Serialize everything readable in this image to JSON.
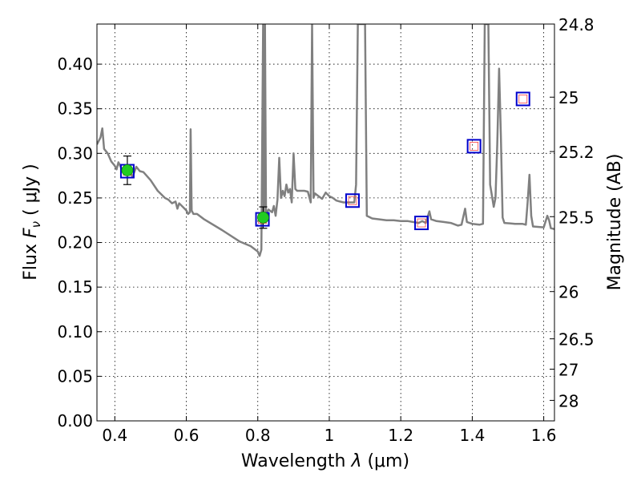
{
  "chart_data": {
    "type": "line",
    "xlabel": "Wavelength",
    "xlabel_symbol": "λ",
    "xlabel_unit": "(μm)",
    "ylabel": "Flux",
    "ylabel_symbol": "F",
    "ylabel_sub": "ν",
    "ylabel_unit": "( μJy )",
    "ylabel_right": "Magnitude (AB)",
    "xlim": [
      0.35,
      1.63
    ],
    "ylim": [
      0.0,
      0.445
    ],
    "grid": true,
    "x_ticks": [
      0.4,
      0.6,
      0.8,
      1.0,
      1.2,
      1.4,
      1.6
    ],
    "x_tick_labels": [
      "0.4",
      "0.6",
      "0.8",
      "1",
      "1.2",
      "1.4",
      "1.6"
    ],
    "y_ticks": [
      0.0,
      0.05,
      0.1,
      0.15,
      0.2,
      0.25,
      0.3,
      0.35,
      0.4
    ],
    "y_tick_labels": [
      "0.00",
      "0.05",
      "0.10",
      "0.15",
      "0.20",
      "0.25",
      "0.30",
      "0.35",
      "0.40"
    ],
    "right_ticks": [
      {
        "label": "24.8",
        "flux": 0.445
      },
      {
        "label": "25",
        "flux": 0.363
      },
      {
        "label": "25.2",
        "flux": 0.302
      },
      {
        "label": "25.5",
        "flux": 0.229
      },
      {
        "label": "26",
        "flux": 0.145
      },
      {
        "label": "26.5",
        "flux": 0.092
      },
      {
        "label": "27",
        "flux": 0.058
      },
      {
        "label": "28",
        "flux": 0.023
      }
    ],
    "colors": {
      "model": "#808080",
      "obs_fill": "#22cc22",
      "obs_edge": "#118811",
      "box": "#0000cc",
      "box_inner": "#ff4444",
      "errorbar": "#000000"
    },
    "series": [
      {
        "kind": "model-spectrum",
        "points": [
          [
            0.35,
            0.31
          ],
          [
            0.36,
            0.318
          ],
          [
            0.365,
            0.328
          ],
          [
            0.37,
            0.305
          ],
          [
            0.38,
            0.3
          ],
          [
            0.39,
            0.291
          ],
          [
            0.4,
            0.286
          ],
          [
            0.405,
            0.282
          ],
          [
            0.41,
            0.29
          ],
          [
            0.42,
            0.282
          ],
          [
            0.43,
            0.276
          ],
          [
            0.44,
            0.279
          ],
          [
            0.45,
            0.274
          ],
          [
            0.46,
            0.285
          ],
          [
            0.47,
            0.28
          ],
          [
            0.48,
            0.279
          ],
          [
            0.5,
            0.27
          ],
          [
            0.52,
            0.258
          ],
          [
            0.54,
            0.25
          ],
          [
            0.55,
            0.248
          ],
          [
            0.56,
            0.244
          ],
          [
            0.57,
            0.246
          ],
          [
            0.575,
            0.238
          ],
          [
            0.58,
            0.244
          ],
          [
            0.59,
            0.24
          ],
          [
            0.6,
            0.236
          ],
          [
            0.605,
            0.232
          ],
          [
            0.61,
            0.234
          ],
          [
            0.612,
            0.327
          ],
          [
            0.615,
            0.236
          ],
          [
            0.62,
            0.232
          ],
          [
            0.63,
            0.232
          ],
          [
            0.65,
            0.226
          ],
          [
            0.7,
            0.214
          ],
          [
            0.75,
            0.201
          ],
          [
            0.78,
            0.196
          ],
          [
            0.8,
            0.19
          ],
          [
            0.805,
            0.185
          ],
          [
            0.81,
            0.192
          ],
          [
            0.815,
            0.445
          ],
          [
            0.817,
            0.225
          ],
          [
            0.82,
            0.445
          ],
          [
            0.823,
            0.232
          ],
          [
            0.83,
            0.237
          ],
          [
            0.84,
            0.234
          ],
          [
            0.845,
            0.241
          ],
          [
            0.85,
            0.23
          ],
          [
            0.855,
            0.248
          ],
          [
            0.86,
            0.295
          ],
          [
            0.865,
            0.25
          ],
          [
            0.87,
            0.258
          ],
          [
            0.875,
            0.252
          ],
          [
            0.88,
            0.265
          ],
          [
            0.885,
            0.256
          ],
          [
            0.89,
            0.26
          ],
          [
            0.895,
            0.245
          ],
          [
            0.9,
            0.3
          ],
          [
            0.905,
            0.26
          ],
          [
            0.91,
            0.258
          ],
          [
            0.93,
            0.258
          ],
          [
            0.94,
            0.257
          ],
          [
            0.948,
            0.245
          ],
          [
            0.952,
            0.445
          ],
          [
            0.956,
            0.25
          ],
          [
            0.96,
            0.255
          ],
          [
            0.97,
            0.252
          ],
          [
            0.98,
            0.249
          ],
          [
            0.99,
            0.256
          ],
          [
            1.0,
            0.252
          ],
          [
            1.01,
            0.25
          ],
          [
            1.02,
            0.247
          ],
          [
            1.03,
            0.246
          ],
          [
            1.04,
            0.245
          ],
          [
            1.05,
            0.245
          ],
          [
            1.06,
            0.245
          ],
          [
            1.07,
            0.245
          ],
          [
            1.075,
            0.265
          ],
          [
            1.08,
            0.445
          ],
          [
            1.1,
            0.445
          ],
          [
            1.105,
            0.23
          ],
          [
            1.11,
            0.229
          ],
          [
            1.12,
            0.227
          ],
          [
            1.14,
            0.226
          ],
          [
            1.16,
            0.225
          ],
          [
            1.18,
            0.225
          ],
          [
            1.2,
            0.224
          ],
          [
            1.22,
            0.224
          ],
          [
            1.25,
            0.222
          ],
          [
            1.26,
            0.224
          ],
          [
            1.27,
            0.222
          ],
          [
            1.28,
            0.235
          ],
          [
            1.285,
            0.226
          ],
          [
            1.3,
            0.224
          ],
          [
            1.32,
            0.223
          ],
          [
            1.34,
            0.222
          ],
          [
            1.36,
            0.219
          ],
          [
            1.37,
            0.22
          ],
          [
            1.38,
            0.238
          ],
          [
            1.385,
            0.223
          ],
          [
            1.4,
            0.221
          ],
          [
            1.42,
            0.22
          ],
          [
            1.43,
            0.221
          ],
          [
            1.435,
            0.445
          ],
          [
            1.445,
            0.445
          ],
          [
            1.45,
            0.265
          ],
          [
            1.46,
            0.24
          ],
          [
            1.465,
            0.25
          ],
          [
            1.47,
            0.31
          ],
          [
            1.475,
            0.395
          ],
          [
            1.48,
            0.32
          ],
          [
            1.485,
            0.228
          ],
          [
            1.49,
            0.222
          ],
          [
            1.52,
            0.221
          ],
          [
            1.54,
            0.221
          ],
          [
            1.55,
            0.22
          ],
          [
            1.555,
            0.245
          ],
          [
            1.56,
            0.276
          ],
          [
            1.565,
            0.23
          ],
          [
            1.57,
            0.218
          ],
          [
            1.6,
            0.217
          ],
          [
            1.61,
            0.23
          ],
          [
            1.615,
            0.225
          ],
          [
            1.62,
            0.216
          ],
          [
            1.63,
            0.215
          ]
        ]
      },
      {
        "kind": "observed-flux",
        "points": [
          {
            "x": 0.435,
            "y": 0.281,
            "yerr": 0.016
          },
          {
            "x": 0.815,
            "y": 0.228,
            "yerr": 0.012
          }
        ]
      },
      {
        "kind": "synthetic-photometry",
        "points": [
          {
            "x": 0.435,
            "y": 0.28
          },
          {
            "x": 0.813,
            "y": 0.226
          },
          {
            "x": 1.065,
            "y": 0.247
          },
          {
            "x": 1.258,
            "y": 0.222
          },
          {
            "x": 1.405,
            "y": 0.308
          },
          {
            "x": 1.542,
            "y": 0.361
          }
        ]
      }
    ]
  }
}
